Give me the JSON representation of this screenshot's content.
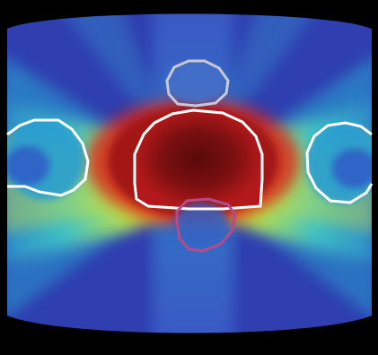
{
  "image": {
    "background_color": "#000000",
    "colors": {
      "dose_low": "#2f3fb0",
      "dose_mid_low": "#2b87c9",
      "dose_mid": "#3fc3c6",
      "dose_mid_high": "#f2e51a",
      "dose_high": "#d7261e",
      "dose_max": "#5a0a0a",
      "contour_target": "#ffffff",
      "contour_upper": "#c9c9d4",
      "contour_lower": "#b64a8a"
    },
    "structures": [
      {
        "name": "left-contour",
        "color_key": "contour_target"
      },
      {
        "name": "right-contour",
        "color_key": "contour_target"
      },
      {
        "name": "central-target",
        "color_key": "contour_target"
      },
      {
        "name": "upper-organ",
        "color_key": "contour_upper"
      },
      {
        "name": "lower-organ",
        "color_key": "contour_lower"
      }
    ]
  }
}
